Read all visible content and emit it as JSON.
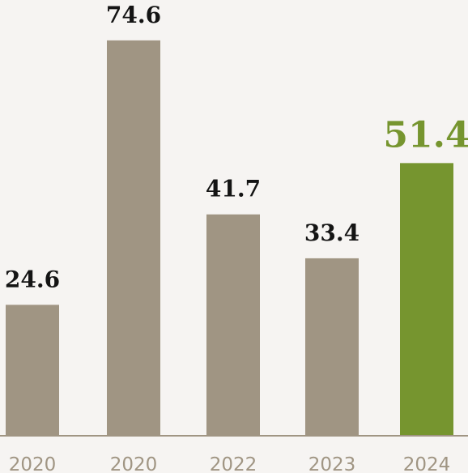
{
  "chart_data": {
    "type": "bar",
    "categories": [
      "2020",
      "2020",
      "2022",
      "2023",
      "2024"
    ],
    "values": [
      24.6,
      74.6,
      41.7,
      33.4,
      51.4
    ],
    "value_labels": [
      "24.6",
      "74.6",
      "41.7",
      "33.4",
      "51.4"
    ],
    "highlight_index": 4,
    "ylim": [
      0,
      80
    ],
    "grid": false,
    "legend": "none",
    "colors": {
      "bar": "#a09583",
      "highlight": "#76952f",
      "baseline": "#a09583",
      "label": "#141414",
      "tick": "#a09583",
      "background": "#f6f4f2"
    }
  }
}
